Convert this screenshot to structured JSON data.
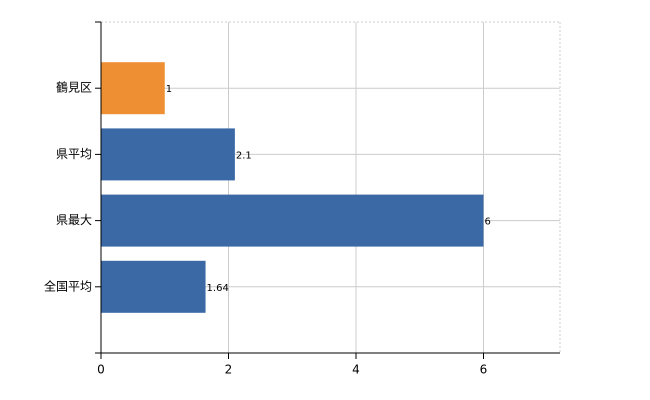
{
  "chart_data": {
    "type": "bar",
    "orientation": "horizontal",
    "categories": [
      "鶴見区",
      "県平均",
      "県最大",
      "全国平均"
    ],
    "values": [
      1,
      2.1,
      6,
      1.64
    ],
    "colors": [
      "#ee8f33",
      "#3a69a6",
      "#3a69a6",
      "#3a69a6"
    ],
    "xlim": [
      0,
      7.2
    ],
    "xticks": [
      0,
      2,
      4,
      6
    ],
    "grid": true
  }
}
